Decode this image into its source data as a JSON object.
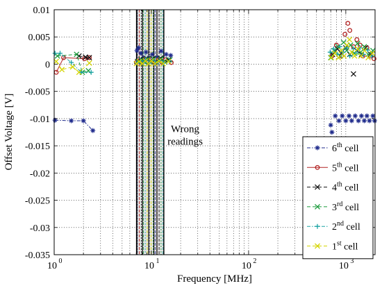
{
  "chart_data": {
    "type": "scatter",
    "title": "",
    "xlabel": "Frequency [MHz]",
    "ylabel": "Offset Voltage [V]",
    "xscale": "log",
    "xlim": [
      1,
      2000
    ],
    "ylim": [
      -0.035,
      0.01
    ],
    "grid": true,
    "legend_position": "bottom-right",
    "x_tick_labels": [
      {
        "value": 1,
        "base": "10",
        "exp": "0"
      },
      {
        "value": 10,
        "base": "10",
        "exp": "1"
      },
      {
        "value": 100,
        "base": "10",
        "exp": "2"
      },
      {
        "value": 1000,
        "base": "10",
        "exp": "3"
      }
    ],
    "y_ticks": [
      0.01,
      0.005,
      0,
      -0.005,
      -0.01,
      -0.015,
      -0.02,
      -0.025,
      -0.03,
      -0.035
    ],
    "y_tick_labels": [
      "0.01",
      "0.005",
      "0",
      "-0.005",
      "-0.01",
      "-0.015",
      "-0.02",
      "-0.025",
      "-0.03",
      "-0.035"
    ],
    "shaded_region": {
      "x": [
        7,
        13.5
      ],
      "label_lines": [
        "Wrong",
        "readings"
      ],
      "label_x": 16,
      "label_y": -0.0125
    },
    "series": [
      {
        "name": "6th cell",
        "base": "6",
        "sup": "th",
        "suffix": " cell",
        "color": "#1f2b8c",
        "marker": "asterisk",
        "line": "dash-dot",
        "points": [
          [
            1.02,
            -0.0103
          ],
          [
            1.5,
            -0.0104
          ],
          [
            2.0,
            -0.0104
          ],
          [
            2.5,
            -0.0122
          ],
          [
            7.1,
            0.0025
          ],
          [
            7.4,
            0.003
          ],
          [
            7.8,
            0.002
          ],
          [
            8.3,
            0.0012
          ],
          [
            8.8,
            0.0022
          ],
          [
            9.4,
            0.0012
          ],
          [
            10.2,
            0.0018
          ],
          [
            11.5,
            0.0012
          ],
          [
            12.6,
            0.0024
          ],
          [
            14.2,
            0.0018
          ],
          [
            15.8,
            0.0016
          ],
          [
            700,
            -0.0112
          ],
          [
            720,
            -0.0125
          ],
          [
            780,
            -0.0095
          ],
          [
            850,
            -0.0104
          ],
          [
            920,
            -0.0095
          ],
          [
            1000,
            -0.0104
          ],
          [
            1080,
            -0.0095
          ],
          [
            1150,
            -0.0104
          ],
          [
            1250,
            -0.0095
          ],
          [
            1350,
            -0.0104
          ],
          [
            1450,
            -0.0095
          ],
          [
            1550,
            -0.0104
          ],
          [
            1650,
            -0.0095
          ],
          [
            1750,
            -0.0104
          ],
          [
            1900,
            -0.0095
          ],
          [
            1980,
            -0.0104
          ]
        ]
      },
      {
        "name": "5th cell",
        "base": "5",
        "sup": "th",
        "suffix": " cell",
        "color": "#b22222",
        "marker": "circle",
        "line": "solid",
        "points": [
          [
            1.05,
            -0.0015
          ],
          [
            1.25,
            0.0012
          ],
          [
            2.05,
            0.001
          ],
          [
            2.3,
            0.0012
          ],
          [
            7.0,
            0.0003
          ],
          [
            7.6,
            0.0007
          ],
          [
            8.0,
            0.0003
          ],
          [
            8.6,
            0.0009
          ],
          [
            9.2,
            0.0003
          ],
          [
            9.9,
            0.0008
          ],
          [
            10.7,
            0.0003
          ],
          [
            11.8,
            0.0008
          ],
          [
            12.9,
            0.0003
          ],
          [
            14.0,
            0.0008
          ],
          [
            16.0,
            0.0003
          ],
          [
            720,
            0.0015
          ],
          [
            800,
            0.0035
          ],
          [
            900,
            0.0015
          ],
          [
            980,
            0.0055
          ],
          [
            1050,
            0.0075
          ],
          [
            1100,
            0.0062
          ],
          [
            1200,
            0.0032
          ],
          [
            1300,
            0.0045
          ],
          [
            1400,
            0.0035
          ],
          [
            1500,
            0.0015
          ],
          [
            1650,
            0.003
          ],
          [
            1800,
            0.0015
          ],
          [
            1950,
            0.001
          ]
        ]
      },
      {
        "name": "4th cell",
        "base": "4",
        "sup": "th",
        "suffix": " cell",
        "color": "#111111",
        "marker": "x",
        "line": "dashed",
        "points": [
          [
            1.8,
            0.0015
          ],
          [
            2.1,
            0.0013
          ],
          [
            2.3,
            0.0012
          ],
          [
            7.2,
            0.0005
          ],
          [
            7.8,
            0.0009
          ],
          [
            8.4,
            0.0005
          ],
          [
            9.0,
            0.001
          ],
          [
            9.6,
            0.0005
          ],
          [
            10.4,
            0.001
          ],
          [
            11.2,
            0.0005
          ],
          [
            12.4,
            0.0011
          ],
          [
            13.6,
            0.0005
          ],
          [
            15.0,
            0.0008
          ],
          [
            730,
            0.0018
          ],
          [
            820,
            0.0028
          ],
          [
            900,
            0.002
          ],
          [
            1000,
            0.003
          ],
          [
            1100,
            0.0018
          ],
          [
            1200,
            -0.0018
          ],
          [
            1300,
            0.0025
          ],
          [
            1450,
            0.0018
          ],
          [
            1600,
            0.003
          ],
          [
            1800,
            0.0018
          ]
        ]
      },
      {
        "name": "3rd cell",
        "base": "3",
        "sup": "rd",
        "suffix": " cell",
        "color": "#1a9a3a",
        "marker": "x",
        "line": "dashed",
        "points": [
          [
            1.08,
            0.0015
          ],
          [
            1.7,
            0.0018
          ],
          [
            1.95,
            -0.0015
          ],
          [
            2.25,
            -0.0012
          ],
          [
            7.3,
            0.0004
          ],
          [
            7.9,
            0.0008
          ],
          [
            8.5,
            0.0004
          ],
          [
            9.1,
            0.0009
          ],
          [
            9.7,
            0.0004
          ],
          [
            10.5,
            0.0009
          ],
          [
            11.3,
            0.0004
          ],
          [
            12.5,
            0.0009
          ],
          [
            13.8,
            0.0004
          ],
          [
            15.5,
            0.0008
          ],
          [
            700,
            0.0012
          ],
          [
            760,
            0.0025
          ],
          [
            830,
            0.0032
          ],
          [
            880,
            0.0015
          ],
          [
            950,
            0.004
          ],
          [
            1020,
            0.0025
          ],
          [
            1120,
            0.0035
          ],
          [
            1220,
            0.002
          ],
          [
            1320,
            0.0038
          ],
          [
            1420,
            0.0022
          ],
          [
            1550,
            0.0032
          ],
          [
            1700,
            0.0018
          ],
          [
            1900,
            0.0025
          ]
        ]
      },
      {
        "name": "2nd cell",
        "base": "2",
        "sup": "nd",
        "suffix": " cell",
        "color": "#1aa3a3",
        "marker": "plus",
        "line": "dash-dot",
        "points": [
          [
            1.02,
            0.002
          ],
          [
            1.15,
            0.002
          ],
          [
            1.5,
            0.0003
          ],
          [
            1.9,
            -0.0015
          ],
          [
            2.4,
            -0.0015
          ],
          [
            7.1,
            0.0002
          ],
          [
            7.7,
            0.0006
          ],
          [
            8.2,
            0.0002
          ],
          [
            8.8,
            0.0007
          ],
          [
            9.5,
            0.0002
          ],
          [
            10.3,
            0.0007
          ],
          [
            11.0,
            0.0002
          ],
          [
            12.2,
            0.0007
          ],
          [
            13.4,
            0.0002
          ],
          [
            15.3,
            0.0006
          ],
          [
            690,
            0.0022
          ],
          [
            750,
            0.0028
          ],
          [
            820,
            0.0018
          ],
          [
            870,
            0.0032
          ],
          [
            940,
            0.0022
          ],
          [
            1010,
            0.003
          ],
          [
            1100,
            0.0015
          ],
          [
            1200,
            0.0028
          ],
          [
            1300,
            0.002
          ],
          [
            1400,
            0.003
          ],
          [
            1520,
            0.0018
          ],
          [
            1680,
            0.0026
          ],
          [
            1850,
            0.0015
          ]
        ]
      },
      {
        "name": "1st cell",
        "base": "1",
        "sup": "st",
        "suffix": " cell",
        "color": "#d4d400",
        "marker": "x",
        "line": "dashed",
        "points": [
          [
            1.05,
            0.0005
          ],
          [
            1.2,
            -0.001
          ],
          [
            1.55,
            -0.0005
          ],
          [
            1.8,
            -0.0015
          ],
          [
            2.3,
            0.0002
          ],
          [
            7.0,
            0.0001
          ],
          [
            7.5,
            0.0005
          ],
          [
            8.1,
            0.0001
          ],
          [
            8.7,
            0.0006
          ],
          [
            9.3,
            0.0001
          ],
          [
            10.0,
            0.0006
          ],
          [
            10.9,
            0.0001
          ],
          [
            12.0,
            0.0006
          ],
          [
            13.2,
            0.0001
          ],
          [
            15.0,
            0.0005
          ],
          [
            710,
            0.0012
          ],
          [
            770,
            0.002
          ],
          [
            840,
            0.0012
          ],
          [
            900,
            0.0025
          ],
          [
            960,
            0.0015
          ],
          [
            1030,
            0.0035
          ],
          [
            1090,
            0.0045
          ],
          [
            1150,
            0.0022
          ],
          [
            1230,
            0.0015
          ],
          [
            1330,
            0.0028
          ],
          [
            1430,
            0.0015
          ],
          [
            1560,
            0.0025
          ],
          [
            1700,
            0.0012
          ],
          [
            1880,
            0.002
          ]
        ]
      }
    ]
  }
}
